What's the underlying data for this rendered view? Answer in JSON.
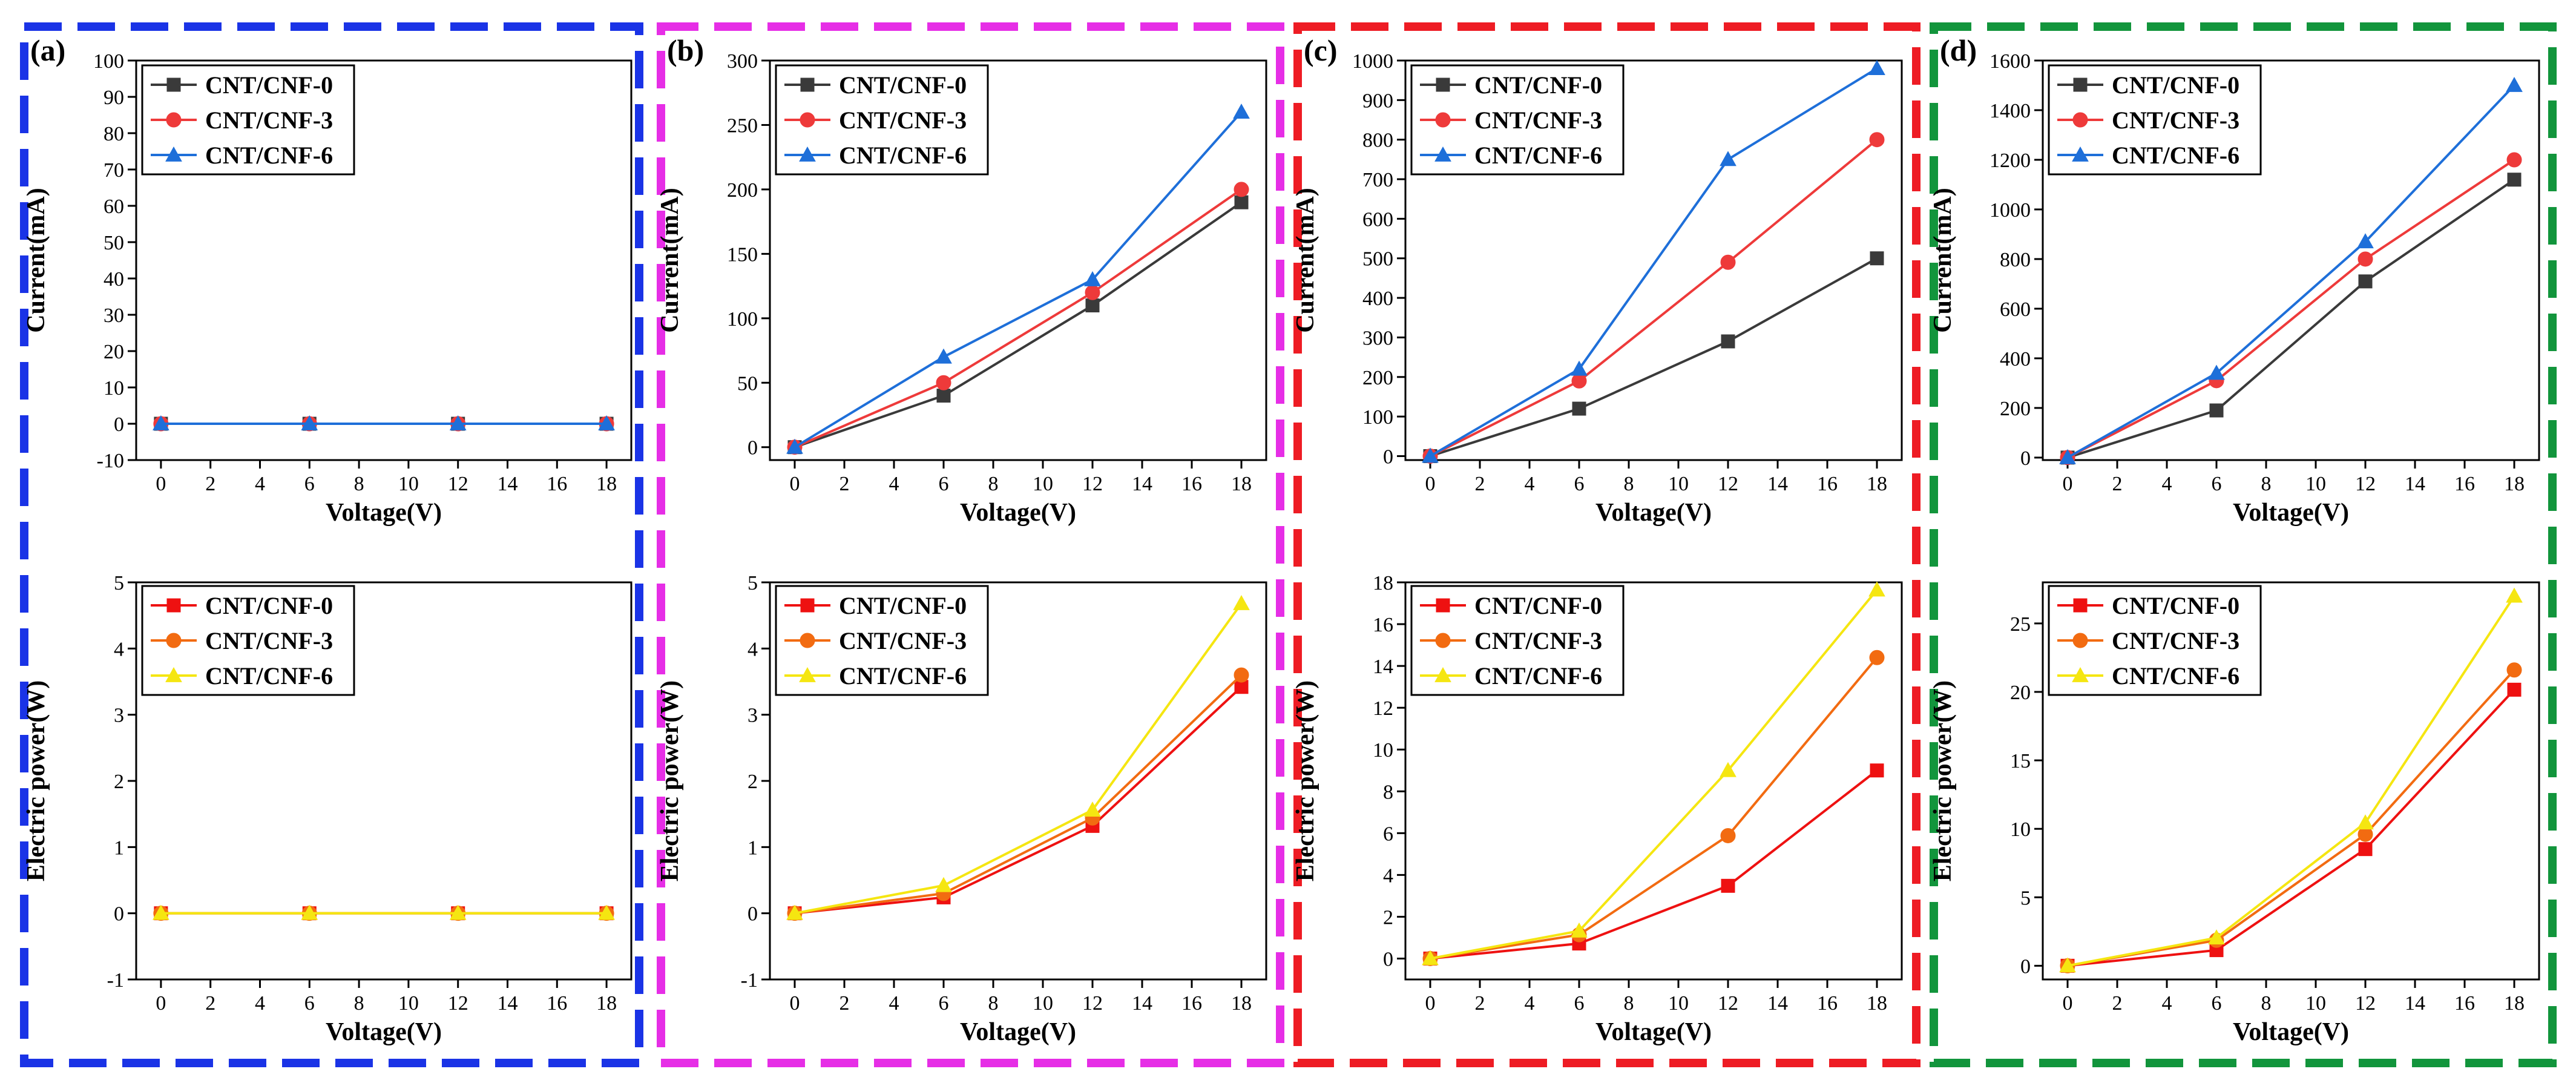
{
  "figure": {
    "background": "#ffffff",
    "panel_border_colors": [
      "#1a33e6",
      "#e62ee6",
      "#ee1c24",
      "#12953c"
    ]
  },
  "chart_data": [
    {
      "panel": "(a)",
      "type": "line",
      "title": "",
      "xlabel": "Voltage(V)",
      "ylabel": "Current(mA)",
      "xlim": [
        -1,
        19
      ],
      "ylim": [
        -10,
        100
      ],
      "xticks": [
        0,
        2,
        4,
        6,
        8,
        10,
        12,
        14,
        16,
        18
      ],
      "yticks": [
        -10,
        0,
        10,
        20,
        30,
        40,
        50,
        60,
        70,
        80,
        90,
        100
      ],
      "x": [
        0,
        6,
        12,
        18
      ],
      "series": [
        {
          "name": "CNT/CNF-0",
          "color": "#3a3a3a",
          "marker": "square",
          "values": [
            0,
            0,
            0,
            0
          ]
        },
        {
          "name": "CNT/CNF-3",
          "color": "#ee3a3a",
          "marker": "circle",
          "values": [
            0,
            0,
            0,
            0
          ]
        },
        {
          "name": "CNT/CNF-6",
          "color": "#1e6fd9",
          "marker": "triangle",
          "values": [
            0,
            0,
            0,
            0
          ]
        }
      ]
    },
    {
      "panel": "(b)",
      "type": "line",
      "title": "",
      "xlabel": "Voltage(V)",
      "ylabel": "Current(mA)",
      "xlim": [
        -1,
        19
      ],
      "ylim": [
        -10,
        300
      ],
      "xticks": [
        0,
        2,
        4,
        6,
        8,
        10,
        12,
        14,
        16,
        18
      ],
      "yticks": [
        0,
        50,
        100,
        150,
        200,
        250,
        300
      ],
      "x": [
        0,
        6,
        12,
        18
      ],
      "series": [
        {
          "name": "CNT/CNF-0",
          "color": "#3a3a3a",
          "marker": "square",
          "values": [
            0,
            40,
            110,
            190
          ]
        },
        {
          "name": "CNT/CNF-3",
          "color": "#ee3a3a",
          "marker": "circle",
          "values": [
            0,
            50,
            120,
            200
          ]
        },
        {
          "name": "CNT/CNF-6",
          "color": "#1e6fd9",
          "marker": "triangle",
          "values": [
            0,
            70,
            130,
            260
          ]
        }
      ]
    },
    {
      "panel": "(c)",
      "type": "line",
      "title": "",
      "xlabel": "Voltage(V)",
      "ylabel": "Current(mA)",
      "xlim": [
        -1,
        19
      ],
      "ylim": [
        -10,
        1000
      ],
      "xticks": [
        0,
        2,
        4,
        6,
        8,
        10,
        12,
        14,
        16,
        18
      ],
      "yticks": [
        0,
        100,
        200,
        300,
        400,
        500,
        600,
        700,
        800,
        900,
        1000
      ],
      "x": [
        0,
        6,
        12,
        18
      ],
      "series": [
        {
          "name": "CNT/CNF-0",
          "color": "#3a3a3a",
          "marker": "square",
          "values": [
            0,
            120,
            290,
            500
          ]
        },
        {
          "name": "CNT/CNF-3",
          "color": "#ee3a3a",
          "marker": "circle",
          "values": [
            0,
            190,
            490,
            800
          ]
        },
        {
          "name": "CNT/CNF-6",
          "color": "#1e6fd9",
          "marker": "triangle",
          "values": [
            0,
            220,
            750,
            980
          ]
        }
      ]
    },
    {
      "panel": "(d)",
      "type": "line",
      "title": "",
      "xlabel": "Voltage(V)",
      "ylabel": "Current(mA)",
      "xlim": [
        -1,
        19
      ],
      "ylim": [
        -10,
        1600
      ],
      "xticks": [
        0,
        2,
        4,
        6,
        8,
        10,
        12,
        14,
        16,
        18
      ],
      "yticks": [
        0,
        200,
        400,
        600,
        800,
        1000,
        1200,
        1400,
        1600
      ],
      "x": [
        0,
        6,
        12,
        18
      ],
      "series": [
        {
          "name": "CNT/CNF-0",
          "color": "#3a3a3a",
          "marker": "square",
          "values": [
            0,
            190,
            710,
            1120
          ]
        },
        {
          "name": "CNT/CNF-3",
          "color": "#ee3a3a",
          "marker": "circle",
          "values": [
            0,
            310,
            800,
            1200
          ]
        },
        {
          "name": "CNT/CNF-6",
          "color": "#1e6fd9",
          "marker": "triangle",
          "values": [
            0,
            340,
            870,
            1500
          ]
        }
      ]
    },
    {
      "panel": "",
      "type": "line",
      "title": "",
      "xlabel": "Voltage(V)",
      "ylabel": "Electric power(W)",
      "xlim": [
        -1,
        19
      ],
      "ylim": [
        -1,
        5
      ],
      "xticks": [
        0,
        2,
        4,
        6,
        8,
        10,
        12,
        14,
        16,
        18
      ],
      "yticks": [
        -1,
        0,
        1,
        2,
        3,
        4,
        5
      ],
      "x": [
        0,
        6,
        12,
        18
      ],
      "series": [
        {
          "name": "CNT/CNF-0",
          "color": "#ee1111",
          "marker": "square",
          "values": [
            0,
            0,
            0,
            0
          ]
        },
        {
          "name": "CNT/CNF-3",
          "color": "#f26b11",
          "marker": "circle",
          "values": [
            0,
            0,
            0,
            0
          ]
        },
        {
          "name": "CNT/CNF-6",
          "color": "#f5e611",
          "marker": "triangle",
          "values": [
            0,
            0,
            0,
            0
          ]
        }
      ]
    },
    {
      "panel": "",
      "type": "line",
      "title": "",
      "xlabel": "Voltage(V)",
      "ylabel": "Electric power(W)",
      "xlim": [
        -1,
        19
      ],
      "ylim": [
        -1,
        5
      ],
      "xticks": [
        0,
        2,
        4,
        6,
        8,
        10,
        12,
        14,
        16,
        18
      ],
      "yticks": [
        -1,
        0,
        1,
        2,
        3,
        4,
        5
      ],
      "x": [
        0,
        6,
        12,
        18
      ],
      "series": [
        {
          "name": "CNT/CNF-0",
          "color": "#ee1111",
          "marker": "square",
          "values": [
            0,
            0.24,
            1.32,
            3.42
          ]
        },
        {
          "name": "CNT/CNF-3",
          "color": "#f26b11",
          "marker": "circle",
          "values": [
            0,
            0.3,
            1.44,
            3.6
          ]
        },
        {
          "name": "CNT/CNF-6",
          "color": "#f5e611",
          "marker": "triangle",
          "values": [
            0,
            0.42,
            1.56,
            4.68
          ]
        }
      ]
    },
    {
      "panel": "",
      "type": "line",
      "title": "",
      "xlabel": "Voltage(V)",
      "ylabel": "Electric power(W)",
      "xlim": [
        -1,
        19
      ],
      "ylim": [
        -1,
        18
      ],
      "xticks": [
        0,
        2,
        4,
        6,
        8,
        10,
        12,
        14,
        16,
        18
      ],
      "yticks": [
        0,
        2,
        4,
        6,
        8,
        10,
        12,
        14,
        16,
        18
      ],
      "x": [
        0,
        6,
        12,
        18
      ],
      "series": [
        {
          "name": "CNT/CNF-0",
          "color": "#ee1111",
          "marker": "square",
          "values": [
            0,
            0.72,
            3.48,
            9.0
          ]
        },
        {
          "name": "CNT/CNF-3",
          "color": "#f26b11",
          "marker": "circle",
          "values": [
            0,
            1.14,
            5.88,
            14.4
          ]
        },
        {
          "name": "CNT/CNF-6",
          "color": "#f5e611",
          "marker": "triangle",
          "values": [
            0,
            1.32,
            9.0,
            17.64
          ]
        }
      ]
    },
    {
      "panel": "",
      "type": "line",
      "title": "",
      "xlabel": "Voltage(V)",
      "ylabel": "Electric power(W)",
      "xlim": [
        -1,
        19
      ],
      "ylim": [
        -1,
        28
      ],
      "xticks": [
        0,
        2,
        4,
        6,
        8,
        10,
        12,
        14,
        16,
        18
      ],
      "yticks": [
        0,
        5,
        10,
        15,
        20,
        25
      ],
      "x": [
        0,
        6,
        12,
        18
      ],
      "series": [
        {
          "name": "CNT/CNF-0",
          "color": "#ee1111",
          "marker": "square",
          "values": [
            0,
            1.14,
            8.52,
            20.16
          ]
        },
        {
          "name": "CNT/CNF-3",
          "color": "#f26b11",
          "marker": "circle",
          "values": [
            0,
            1.86,
            9.6,
            21.6
          ]
        },
        {
          "name": "CNT/CNF-6",
          "color": "#f5e611",
          "marker": "triangle",
          "values": [
            0,
            2.04,
            10.44,
            27.0
          ]
        }
      ]
    }
  ]
}
